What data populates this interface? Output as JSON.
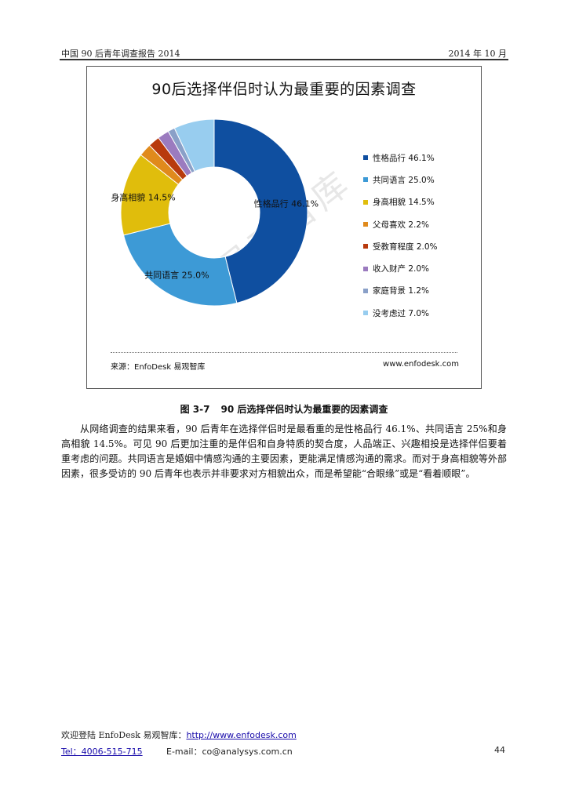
{
  "header": {
    "left": "中国 90 后青年调查报告 2014",
    "right": "2014 年 10 月"
  },
  "figure": {
    "watermark": "易观智库",
    "source": "来源：EnfoDesk 易观智库",
    "website": "www.enfodesk.com",
    "caption_number": "图 3-7",
    "caption_text": "90 后选择伴侣时认为最重要的因素调查"
  },
  "chart_data": {
    "type": "pie",
    "title": "90后选择伴侣时认为最重要的因素调查",
    "donut": true,
    "legend_position": "right",
    "slices": [
      {
        "label": "性格品行",
        "value": 46.1,
        "color": "#0f4fa0",
        "legend": "性格品行 46.1%",
        "data_label": "性格品行 46.1%"
      },
      {
        "label": "共同语言",
        "value": 25.0,
        "color": "#3d9ad6",
        "legend": "共同语言 25.0%",
        "data_label": "共同语言 25.0%"
      },
      {
        "label": "身高相貌",
        "value": 14.5,
        "color": "#e0bd0c",
        "legend": "身高相貌 14.5%",
        "data_label": "身高相貌 14.5%"
      },
      {
        "label": "父母喜欢",
        "value": 2.2,
        "color": "#e08a1c",
        "legend": "父母喜欢 2.2%",
        "data_label": ""
      },
      {
        "label": "受教育程度",
        "value": 2.0,
        "color": "#b83a0d",
        "legend": "受教育程度 2.0%",
        "data_label": ""
      },
      {
        "label": "收入财产",
        "value": 2.0,
        "color": "#9b7bbf",
        "legend": "收入财产 2.0%",
        "data_label": ""
      },
      {
        "label": "家庭背景",
        "value": 1.2,
        "color": "#8aa0c8",
        "legend": "家庭背景 1.2%",
        "data_label": ""
      },
      {
        "label": "没考虑过",
        "value": 7.0,
        "color": "#98cdef",
        "legend": "没考虑过 7.0%",
        "data_label": ""
      }
    ]
  },
  "body": {
    "paragraph": "从网络调查的结果来看，90 后青年在选择伴侣时是最看重的是性格品行 46.1%、共同语言 25%和身高相貌 14.5%。可见 90 后更加注重的是伴侣和自身特质的契合度，人品端正、兴趣相投是选择伴侣要着重考虑的问题。共同语言是婚姻中情感沟通的主要因素，更能满足情感沟通的需求。而对于身高相貌等外部因素，很多受访的 90 后青年也表示并非要求对方相貌出众，而是希望能“合眼缘”或是“看着顺眼”。"
  },
  "footer": {
    "welcome": "欢迎登陆 EnfoDesk 易观智库：",
    "url": "http://www.enfodesk.com",
    "tel": "Tel：4006-515-715",
    "email": "E-mail：co@analysys.com.cn",
    "page": "44"
  }
}
